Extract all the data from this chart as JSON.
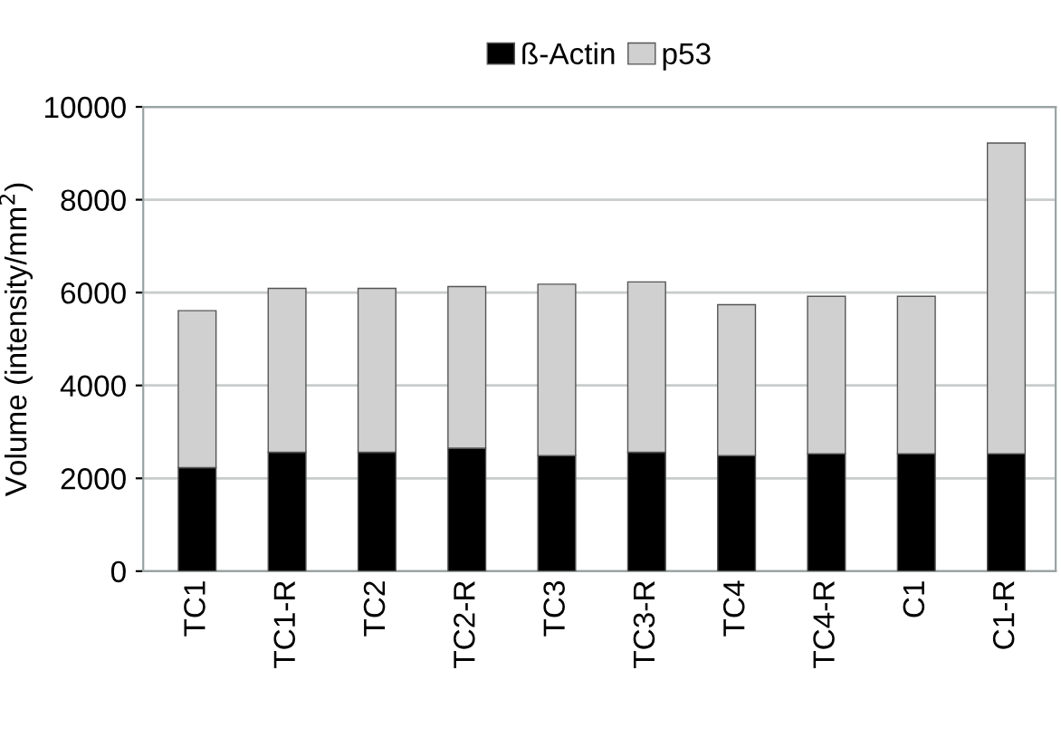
{
  "chart_data": {
    "type": "bar",
    "stacked": true,
    "ylabel": "Volume (intensity/mm$^{2}$)",
    "categories": [
      "TC1",
      "TC1-R",
      "TC2",
      "TC2-R",
      "TC3",
      "TC3-R",
      "TC4",
      "TC4-R",
      "C1",
      "C1-R"
    ],
    "series": [
      {
        "name": "ß-Actin",
        "color": "#000000",
        "values": [
          2230,
          2560,
          2560,
          2650,
          2490,
          2560,
          2490,
          2530,
          2530,
          2530
        ]
      },
      {
        "name": "p53",
        "color": "#d0d0d0",
        "values": [
          3380,
          3530,
          3530,
          3480,
          3690,
          3670,
          3250,
          3390,
          3390,
          6690
        ]
      }
    ],
    "ylim": [
      0,
      10000
    ],
    "yticks": [
      0,
      2000,
      4000,
      6000,
      8000,
      10000
    ],
    "grid": "y",
    "legend": "top"
  }
}
